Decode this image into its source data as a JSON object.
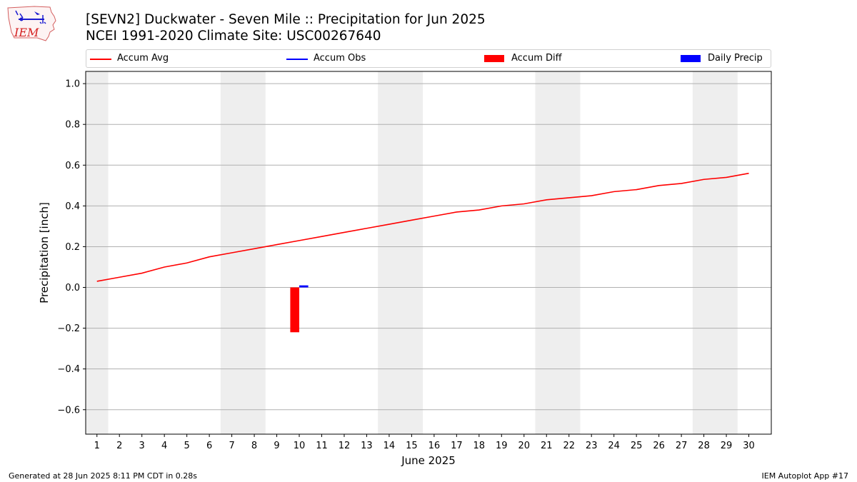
{
  "header": {
    "logo_text": "IEM",
    "title_line1": "[SEVN2] Duckwater - Seven Mile :: Precipitation for Jun 2025",
    "title_line2": "NCEI 1991-2020 Climate Site: USC00267640"
  },
  "legend": [
    {
      "label": "Accum Avg",
      "kind": "line",
      "color": "#ff0000"
    },
    {
      "label": "Accum Obs",
      "kind": "line",
      "color": "#0000ff"
    },
    {
      "label": "Accum Diff",
      "kind": "box",
      "color": "#ff0000"
    },
    {
      "label": "Daily Precip",
      "kind": "box",
      "color": "#0000ff"
    }
  ],
  "chart_data": {
    "type": "line",
    "xlabel": "June 2025",
    "ylabel": "Precipitation [inch]",
    "xlim": [
      0.5,
      31
    ],
    "ylim": [
      -0.72,
      1.06
    ],
    "x_ticks": [
      1,
      2,
      3,
      4,
      5,
      6,
      7,
      8,
      9,
      10,
      11,
      12,
      13,
      14,
      15,
      16,
      17,
      18,
      19,
      20,
      21,
      22,
      23,
      24,
      25,
      26,
      27,
      28,
      29,
      30
    ],
    "y_ticks": [
      -0.6,
      -0.4,
      -0.2,
      0.0,
      0.2,
      0.4,
      0.6,
      0.8,
      1.0
    ],
    "y_tick_labels": [
      "−0.6",
      "−0.4",
      "−0.2",
      "0.0",
      "0.2",
      "0.4",
      "0.6",
      "0.8",
      "1.0"
    ],
    "grid": "horizontal",
    "weekend_shading": [
      [
        0.5,
        1.5
      ],
      [
        6.5,
        8.5
      ],
      [
        13.5,
        15.5
      ],
      [
        20.5,
        22.5
      ],
      [
        27.5,
        29.5
      ]
    ],
    "shading_color": "#eeeeee",
    "series": [
      {
        "name": "Accum Avg",
        "type": "line",
        "color": "#ff0000",
        "x": [
          1,
          2,
          3,
          4,
          5,
          6,
          7,
          8,
          9,
          10,
          11,
          12,
          13,
          14,
          15,
          16,
          17,
          18,
          19,
          20,
          21,
          22,
          23,
          24,
          25,
          26,
          27,
          28,
          29,
          30
        ],
        "values": [
          0.03,
          0.05,
          0.07,
          0.1,
          0.12,
          0.15,
          0.17,
          0.19,
          0.21,
          0.23,
          0.25,
          0.27,
          0.29,
          0.31,
          0.33,
          0.35,
          0.37,
          0.38,
          0.4,
          0.41,
          0.43,
          0.44,
          0.45,
          0.47,
          0.48,
          0.5,
          0.51,
          0.53,
          0.54,
          0.56
        ]
      },
      {
        "name": "Accum Diff",
        "type": "bar",
        "color": "#ff0000",
        "x": [
          10
        ],
        "values": [
          -0.22
        ]
      },
      {
        "name": "Daily Precip",
        "type": "bar",
        "color": "#0000ff",
        "x": [
          10
        ],
        "values": [
          0.01
        ]
      }
    ]
  },
  "footer": {
    "left": "Generated at 28 Jun 2025 8:11 PM CDT in 0.28s",
    "right": "IEM Autoplot App #17"
  }
}
